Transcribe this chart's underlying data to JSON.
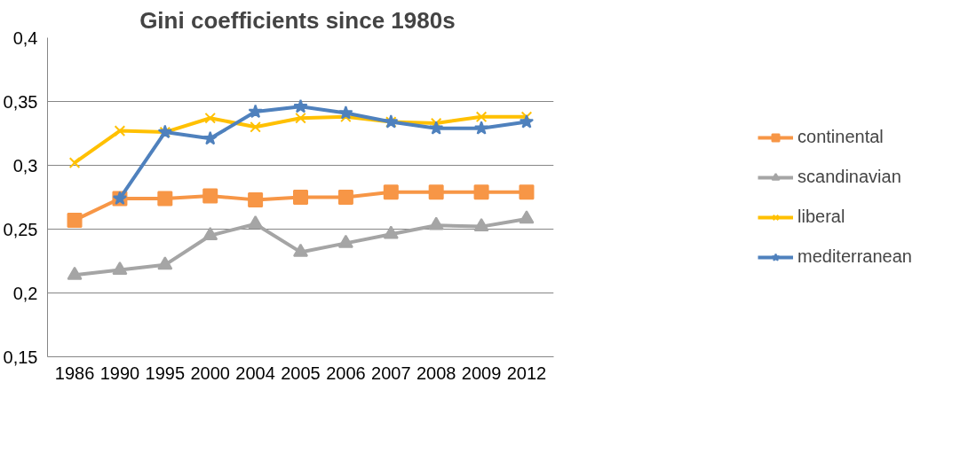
{
  "chart_data": {
    "type": "line",
    "title": "Gini coefficients  since 1980s",
    "categories": [
      "1986",
      "1990",
      "1995",
      "2000",
      "2004",
      "2005",
      "2006",
      "2007",
      "2008",
      "2009",
      "2012"
    ],
    "series": [
      {
        "name": "continental",
        "color": "#f79646",
        "marker": "square",
        "values": [
          0.257,
          0.274,
          0.274,
          0.276,
          0.273,
          0.275,
          0.275,
          0.279,
          0.279,
          0.279,
          0.279
        ]
      },
      {
        "name": "scandinavian",
        "color": "#a5a5a5",
        "marker": "triangle",
        "values": [
          0.214,
          0.218,
          0.222,
          0.245,
          0.254,
          0.232,
          0.239,
          0.246,
          0.253,
          0.252,
          0.258
        ]
      },
      {
        "name": "liberal",
        "color": "#ffc000",
        "marker": "cross",
        "values": [
          0.302,
          0.327,
          0.326,
          0.337,
          0.33,
          0.337,
          0.338,
          0.334,
          0.333,
          0.338,
          0.338
        ]
      },
      {
        "name": "mediterranean",
        "color": "#4f81bd",
        "marker": "star",
        "values": [
          null,
          0.274,
          0.326,
          0.321,
          0.342,
          0.346,
          0.341,
          0.334,
          0.329,
          0.329,
          0.334
        ]
      }
    ],
    "ylim": [
      0.15,
      0.4
    ],
    "yticks": [
      {
        "value": 0.15,
        "label": "0,15"
      },
      {
        "value": 0.2,
        "label": "0,2"
      },
      {
        "value": 0.25,
        "label": "0,25"
      },
      {
        "value": 0.3,
        "label": "0,3"
      },
      {
        "value": 0.35,
        "label": "0,35"
      },
      {
        "value": 0.4,
        "label": "0,4"
      }
    ],
    "grid": "y",
    "legend": "right"
  }
}
